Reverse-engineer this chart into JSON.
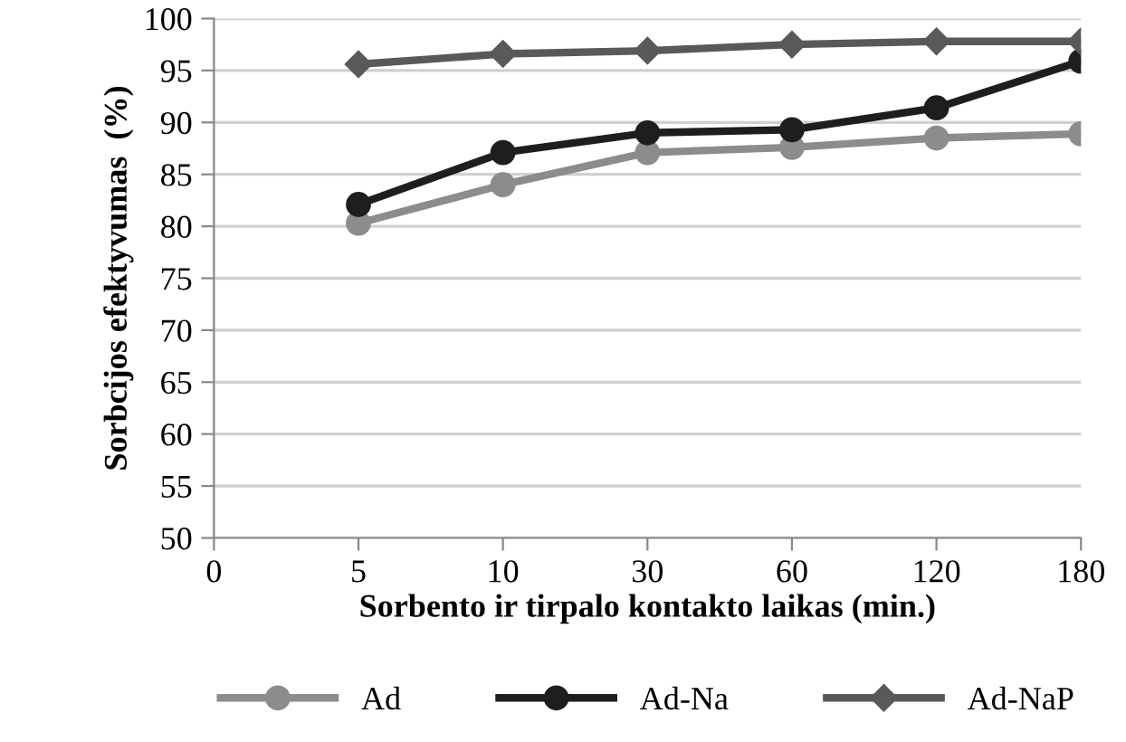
{
  "chart_data": {
    "type": "line",
    "xlabel": "Sorbento ir tirpalo kontakto laikas (min.)",
    "ylabel": "Sorbcijos efektyvumas  (%)",
    "categories": [
      "0",
      "5",
      "10",
      "30",
      "60",
      "120",
      "180"
    ],
    "ylim": [
      50,
      100
    ],
    "yticks": [
      50,
      55,
      60,
      65,
      70,
      75,
      80,
      85,
      90,
      95,
      100
    ],
    "grid": "y",
    "legend": "bottom",
    "line_style": "solid",
    "series": [
      {
        "name": "Ad",
        "color": "#8c8c8c",
        "marker": "circle",
        "values": [
          null,
          80.3,
          84.0,
          87.1,
          87.6,
          88.5,
          88.9
        ]
      },
      {
        "name": "Ad-Na",
        "color": "#1e1e1e",
        "marker": "circle",
        "values": [
          null,
          82.1,
          87.1,
          89.0,
          89.3,
          91.4,
          95.9
        ]
      },
      {
        "name": "Ad-NaP",
        "color": "#595959",
        "marker": "diamond",
        "values": [
          null,
          95.6,
          96.6,
          96.9,
          97.5,
          97.8,
          97.8
        ]
      }
    ]
  }
}
